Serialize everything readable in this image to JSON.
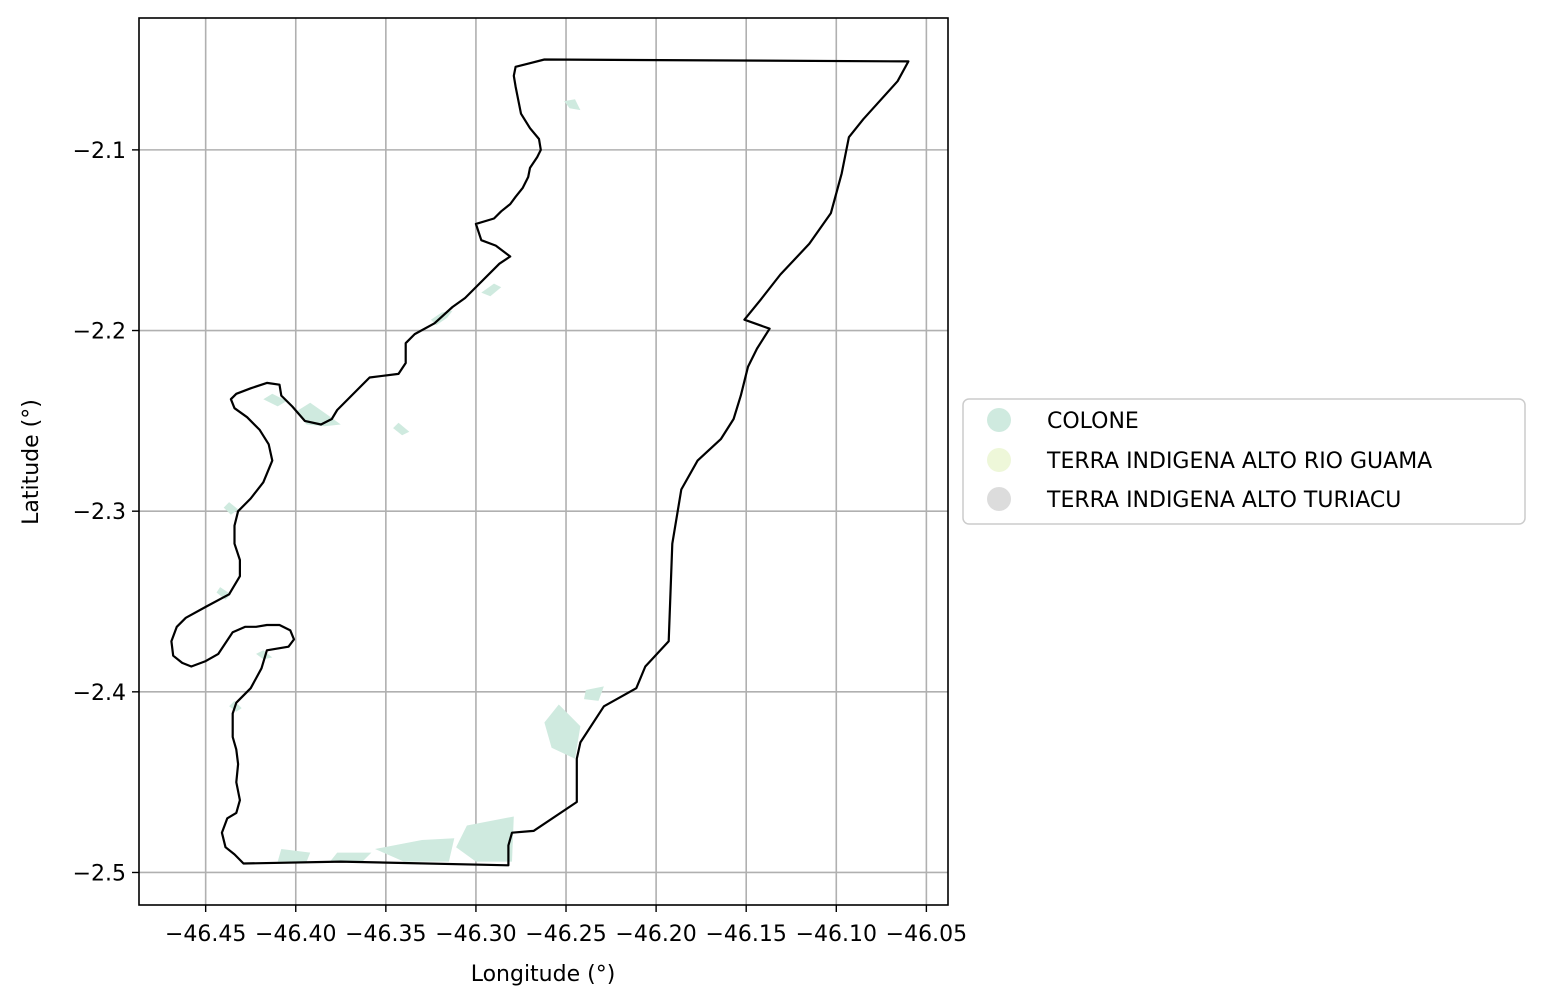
{
  "map": {
    "xlabel": "Longitude (°)",
    "ylabel": "Latitude (°)",
    "xlim": [
      -46.487,
      -46.038
    ],
    "ylim": [
      -2.518,
      -2.027
    ],
    "grid": true,
    "legend_position": "right, outside plot",
    "x_ticks": [
      {
        "value": -46.45,
        "label": "−46.45"
      },
      {
        "value": -46.4,
        "label": "−46.40"
      },
      {
        "value": -46.35,
        "label": "−46.35"
      },
      {
        "value": -46.3,
        "label": "−46.30"
      },
      {
        "value": -46.25,
        "label": "−46.25"
      },
      {
        "value": -46.2,
        "label": "−46.20"
      },
      {
        "value": -46.15,
        "label": "−46.15"
      },
      {
        "value": -46.1,
        "label": "−46.10"
      },
      {
        "value": -46.05,
        "label": "−46.05"
      }
    ],
    "y_ticks": [
      {
        "value": -2.1,
        "label": "−2.1"
      },
      {
        "value": -2.2,
        "label": "−2.2"
      },
      {
        "value": -2.3,
        "label": "−2.3"
      },
      {
        "value": -2.4,
        "label": "−2.4"
      },
      {
        "value": -2.5,
        "label": "−2.5"
      }
    ],
    "legend": [
      {
        "label": "COLONE",
        "color": "#cfeadf"
      },
      {
        "label": "TERRA INDIGENA ALTO RIO GUAMA",
        "color": "#eef7d9"
      },
      {
        "label": "TERRA INDIGENA ALTO TURIACU",
        "color": "#dcdcdc"
      }
    ],
    "colors": {
      "boundary": "#000000",
      "grid": "#b0b0b0",
      "fill": "#cfeadf"
    }
  },
  "chart_data": {
    "type": "map",
    "xlabel": "Longitude (°)",
    "ylabel": "Latitude (°)",
    "xlim": [
      -46.487,
      -46.038
    ],
    "ylim": [
      -2.518,
      -2.027
    ],
    "boundary": [
      [
        -46.262,
        -2.05
      ],
      [
        -46.06,
        -2.051
      ],
      [
        -46.066,
        -2.062
      ],
      [
        -46.085,
        -2.083
      ],
      [
        -46.093,
        -2.093
      ],
      [
        -46.097,
        -2.113
      ],
      [
        -46.103,
        -2.135
      ],
      [
        -46.115,
        -2.152
      ],
      [
        -46.131,
        -2.169
      ],
      [
        -46.142,
        -2.183
      ],
      [
        -46.151,
        -2.194
      ],
      [
        -46.137,
        -2.199
      ],
      [
        -46.144,
        -2.21
      ],
      [
        -46.149,
        -2.22
      ],
      [
        -46.153,
        -2.236
      ],
      [
        -46.157,
        -2.249
      ],
      [
        -46.164,
        -2.26
      ],
      [
        -46.177,
        -2.272
      ],
      [
        -46.186,
        -2.288
      ],
      [
        -46.191,
        -2.318
      ],
      [
        -46.193,
        -2.372
      ],
      [
        -46.206,
        -2.386
      ],
      [
        -46.211,
        -2.398
      ],
      [
        -46.229,
        -2.408
      ],
      [
        -46.242,
        -2.428
      ],
      [
        -46.244,
        -2.437
      ],
      [
        -46.244,
        -2.461
      ],
      [
        -46.268,
        -2.477
      ],
      [
        -46.28,
        -2.478
      ],
      [
        -46.282,
        -2.485
      ],
      [
        -46.282,
        -2.496
      ],
      [
        -46.375,
        -2.494
      ],
      [
        -46.429,
        -2.495
      ],
      [
        -46.434,
        -2.49
      ],
      [
        -46.439,
        -2.486
      ],
      [
        -46.441,
        -2.478
      ],
      [
        -46.438,
        -2.47
      ],
      [
        -46.433,
        -2.467
      ],
      [
        -46.431,
        -2.46
      ],
      [
        -46.433,
        -2.45
      ],
      [
        -46.432,
        -2.44
      ],
      [
        -46.433,
        -2.432
      ],
      [
        -46.435,
        -2.425
      ],
      [
        -46.435,
        -2.412
      ],
      [
        -46.433,
        -2.406
      ],
      [
        -46.425,
        -2.398
      ],
      [
        -46.419,
        -2.387
      ],
      [
        -46.416,
        -2.377
      ],
      [
        -46.404,
        -2.375
      ],
      [
        -46.401,
        -2.371
      ],
      [
        -46.403,
        -2.366
      ],
      [
        -46.409,
        -2.363
      ],
      [
        -46.416,
        -2.363
      ],
      [
        -46.422,
        -2.364
      ],
      [
        -46.428,
        -2.364
      ],
      [
        -46.435,
        -2.367
      ],
      [
        -46.443,
        -2.379
      ],
      [
        -46.45,
        -2.383
      ],
      [
        -46.458,
        -2.386
      ],
      [
        -46.463,
        -2.384
      ],
      [
        -46.468,
        -2.38
      ],
      [
        -46.469,
        -2.372
      ],
      [
        -46.466,
        -2.364
      ],
      [
        -46.461,
        -2.359
      ],
      [
        -46.45,
        -2.353
      ],
      [
        -46.437,
        -2.346
      ],
      [
        -46.431,
        -2.336
      ],
      [
        -46.431,
        -2.327
      ],
      [
        -46.434,
        -2.318
      ],
      [
        -46.434,
        -2.308
      ],
      [
        -46.432,
        -2.3
      ],
      [
        -46.425,
        -2.293
      ],
      [
        -46.418,
        -2.284
      ],
      [
        -46.413,
        -2.272
      ],
      [
        -46.415,
        -2.263
      ],
      [
        -46.42,
        -2.255
      ],
      [
        -46.427,
        -2.248
      ],
      [
        -46.434,
        -2.243
      ],
      [
        -46.436,
        -2.238
      ],
      [
        -46.433,
        -2.235
      ],
      [
        -46.425,
        -2.232
      ],
      [
        -46.416,
        -2.229
      ],
      [
        -46.409,
        -2.23
      ],
      [
        -46.408,
        -2.236
      ],
      [
        -46.402,
        -2.242
      ],
      [
        -46.395,
        -2.25
      ],
      [
        -46.386,
        -2.252
      ],
      [
        -46.38,
        -2.249
      ],
      [
        -46.377,
        -2.244
      ],
      [
        -46.366,
        -2.233
      ],
      [
        -46.359,
        -2.226
      ],
      [
        -46.351,
        -2.225
      ],
      [
        -46.343,
        -2.224
      ],
      [
        -46.339,
        -2.218
      ],
      [
        -46.339,
        -2.207
      ],
      [
        -46.334,
        -2.202
      ],
      [
        -46.323,
        -2.196
      ],
      [
        -46.313,
        -2.187
      ],
      [
        -46.306,
        -2.182
      ],
      [
        -46.299,
        -2.175
      ],
      [
        -46.287,
        -2.163
      ],
      [
        -46.281,
        -2.159
      ],
      [
        -46.289,
        -2.153
      ],
      [
        -46.297,
        -2.15
      ],
      [
        -46.3,
        -2.141
      ],
      [
        -46.29,
        -2.138
      ],
      [
        -46.286,
        -2.134
      ],
      [
        -46.281,
        -2.13
      ],
      [
        -46.278,
        -2.126
      ],
      [
        -46.274,
        -2.121
      ],
      [
        -46.271,
        -2.115
      ],
      [
        -46.27,
        -2.11
      ],
      [
        -46.266,
        -2.104
      ],
      [
        -46.264,
        -2.1
      ],
      [
        -46.265,
        -2.094
      ],
      [
        -46.27,
        -2.088
      ],
      [
        -46.275,
        -2.08
      ],
      [
        -46.277,
        -2.07
      ],
      [
        -46.278,
        -2.065
      ],
      [
        -46.279,
        -2.059
      ],
      [
        -46.278,
        -2.054
      ],
      [
        -46.27,
        -2.052
      ]
    ],
    "features": [
      {
        "category": "COLONE",
        "polygons": [
          [
            [
              -46.305,
              -2.474
            ],
            [
              -46.279,
              -2.469
            ],
            [
              -46.28,
              -2.494
            ],
            [
              -46.3,
              -2.494
            ],
            [
              -46.311,
              -2.486
            ]
          ],
          [
            [
              -46.33,
              -2.482
            ],
            [
              -46.312,
              -2.481
            ],
            [
              -46.315,
              -2.494
            ],
            [
              -46.34,
              -2.494
            ],
            [
              -46.356,
              -2.487
            ]
          ],
          [
            [
              -46.377,
              -2.489
            ],
            [
              -46.358,
              -2.489
            ],
            [
              -46.363,
              -2.494
            ],
            [
              -46.381,
              -2.494
            ]
          ],
          [
            [
              -46.408,
              -2.487
            ],
            [
              -46.392,
              -2.489
            ],
            [
              -46.394,
              -2.494
            ],
            [
              -46.41,
              -2.494
            ]
          ],
          [
            [
              -46.254,
              -2.407
            ],
            [
              -46.242,
              -2.419
            ],
            [
              -46.245,
              -2.437
            ],
            [
              -46.258,
              -2.431
            ],
            [
              -46.262,
              -2.417
            ]
          ],
          [
            [
              -46.239,
              -2.399
            ],
            [
              -46.229,
              -2.397
            ],
            [
              -46.232,
              -2.405
            ],
            [
              -46.24,
              -2.404
            ]
          ],
          [
            [
              -46.392,
              -2.24
            ],
            [
              -46.4,
              -2.245
            ],
            [
              -46.394,
              -2.252
            ],
            [
              -46.384,
              -2.253
            ],
            [
              -46.375,
              -2.252
            ],
            [
              -46.382,
              -2.247
            ]
          ],
          [
            [
              -46.413,
              -2.235
            ],
            [
              -46.405,
              -2.239
            ],
            [
              -46.41,
              -2.242
            ],
            [
              -46.418,
              -2.238
            ]
          ],
          [
            [
              -46.322,
              -2.197
            ],
            [
              -46.316,
              -2.193
            ],
            [
              -46.313,
              -2.189
            ],
            [
              -46.319,
              -2.19
            ],
            [
              -46.325,
              -2.194
            ]
          ],
          [
            [
              -46.297,
              -2.179
            ],
            [
              -46.29,
              -2.174
            ],
            [
              -46.286,
              -2.176
            ],
            [
              -46.292,
              -2.181
            ]
          ],
          [
            [
              -46.245,
              -2.072
            ],
            [
              -46.242,
              -2.078
            ],
            [
              -46.248,
              -2.077
            ],
            [
              -46.251,
              -2.073
            ]
          ],
          [
            [
              -46.437,
              -2.295
            ],
            [
              -46.432,
              -2.299
            ],
            [
              -46.436,
              -2.302
            ],
            [
              -46.44,
              -2.298
            ]
          ],
          [
            [
              -46.442,
              -2.342
            ],
            [
              -46.436,
              -2.346
            ],
            [
              -46.439,
              -2.349
            ],
            [
              -46.444,
              -2.345
            ]
          ],
          [
            [
              -46.418,
              -2.377
            ],
            [
              -46.413,
              -2.381
            ],
            [
              -46.418,
              -2.382
            ],
            [
              -46.422,
              -2.379
            ]
          ],
          [
            [
              -46.434,
              -2.405
            ],
            [
              -46.43,
              -2.409
            ],
            [
              -46.433,
              -2.411
            ],
            [
              -46.437,
              -2.408
            ]
          ],
          [
            [
              -46.343,
              -2.251
            ],
            [
              -46.337,
              -2.256
            ],
            [
              -46.341,
              -2.258
            ],
            [
              -46.346,
              -2.254
            ]
          ]
        ]
      }
    ],
    "legend": [
      "COLONE",
      "TERRA INDIGENA ALTO RIO GUAMA",
      "TERRA INDIGENA ALTO TURIACU"
    ]
  }
}
